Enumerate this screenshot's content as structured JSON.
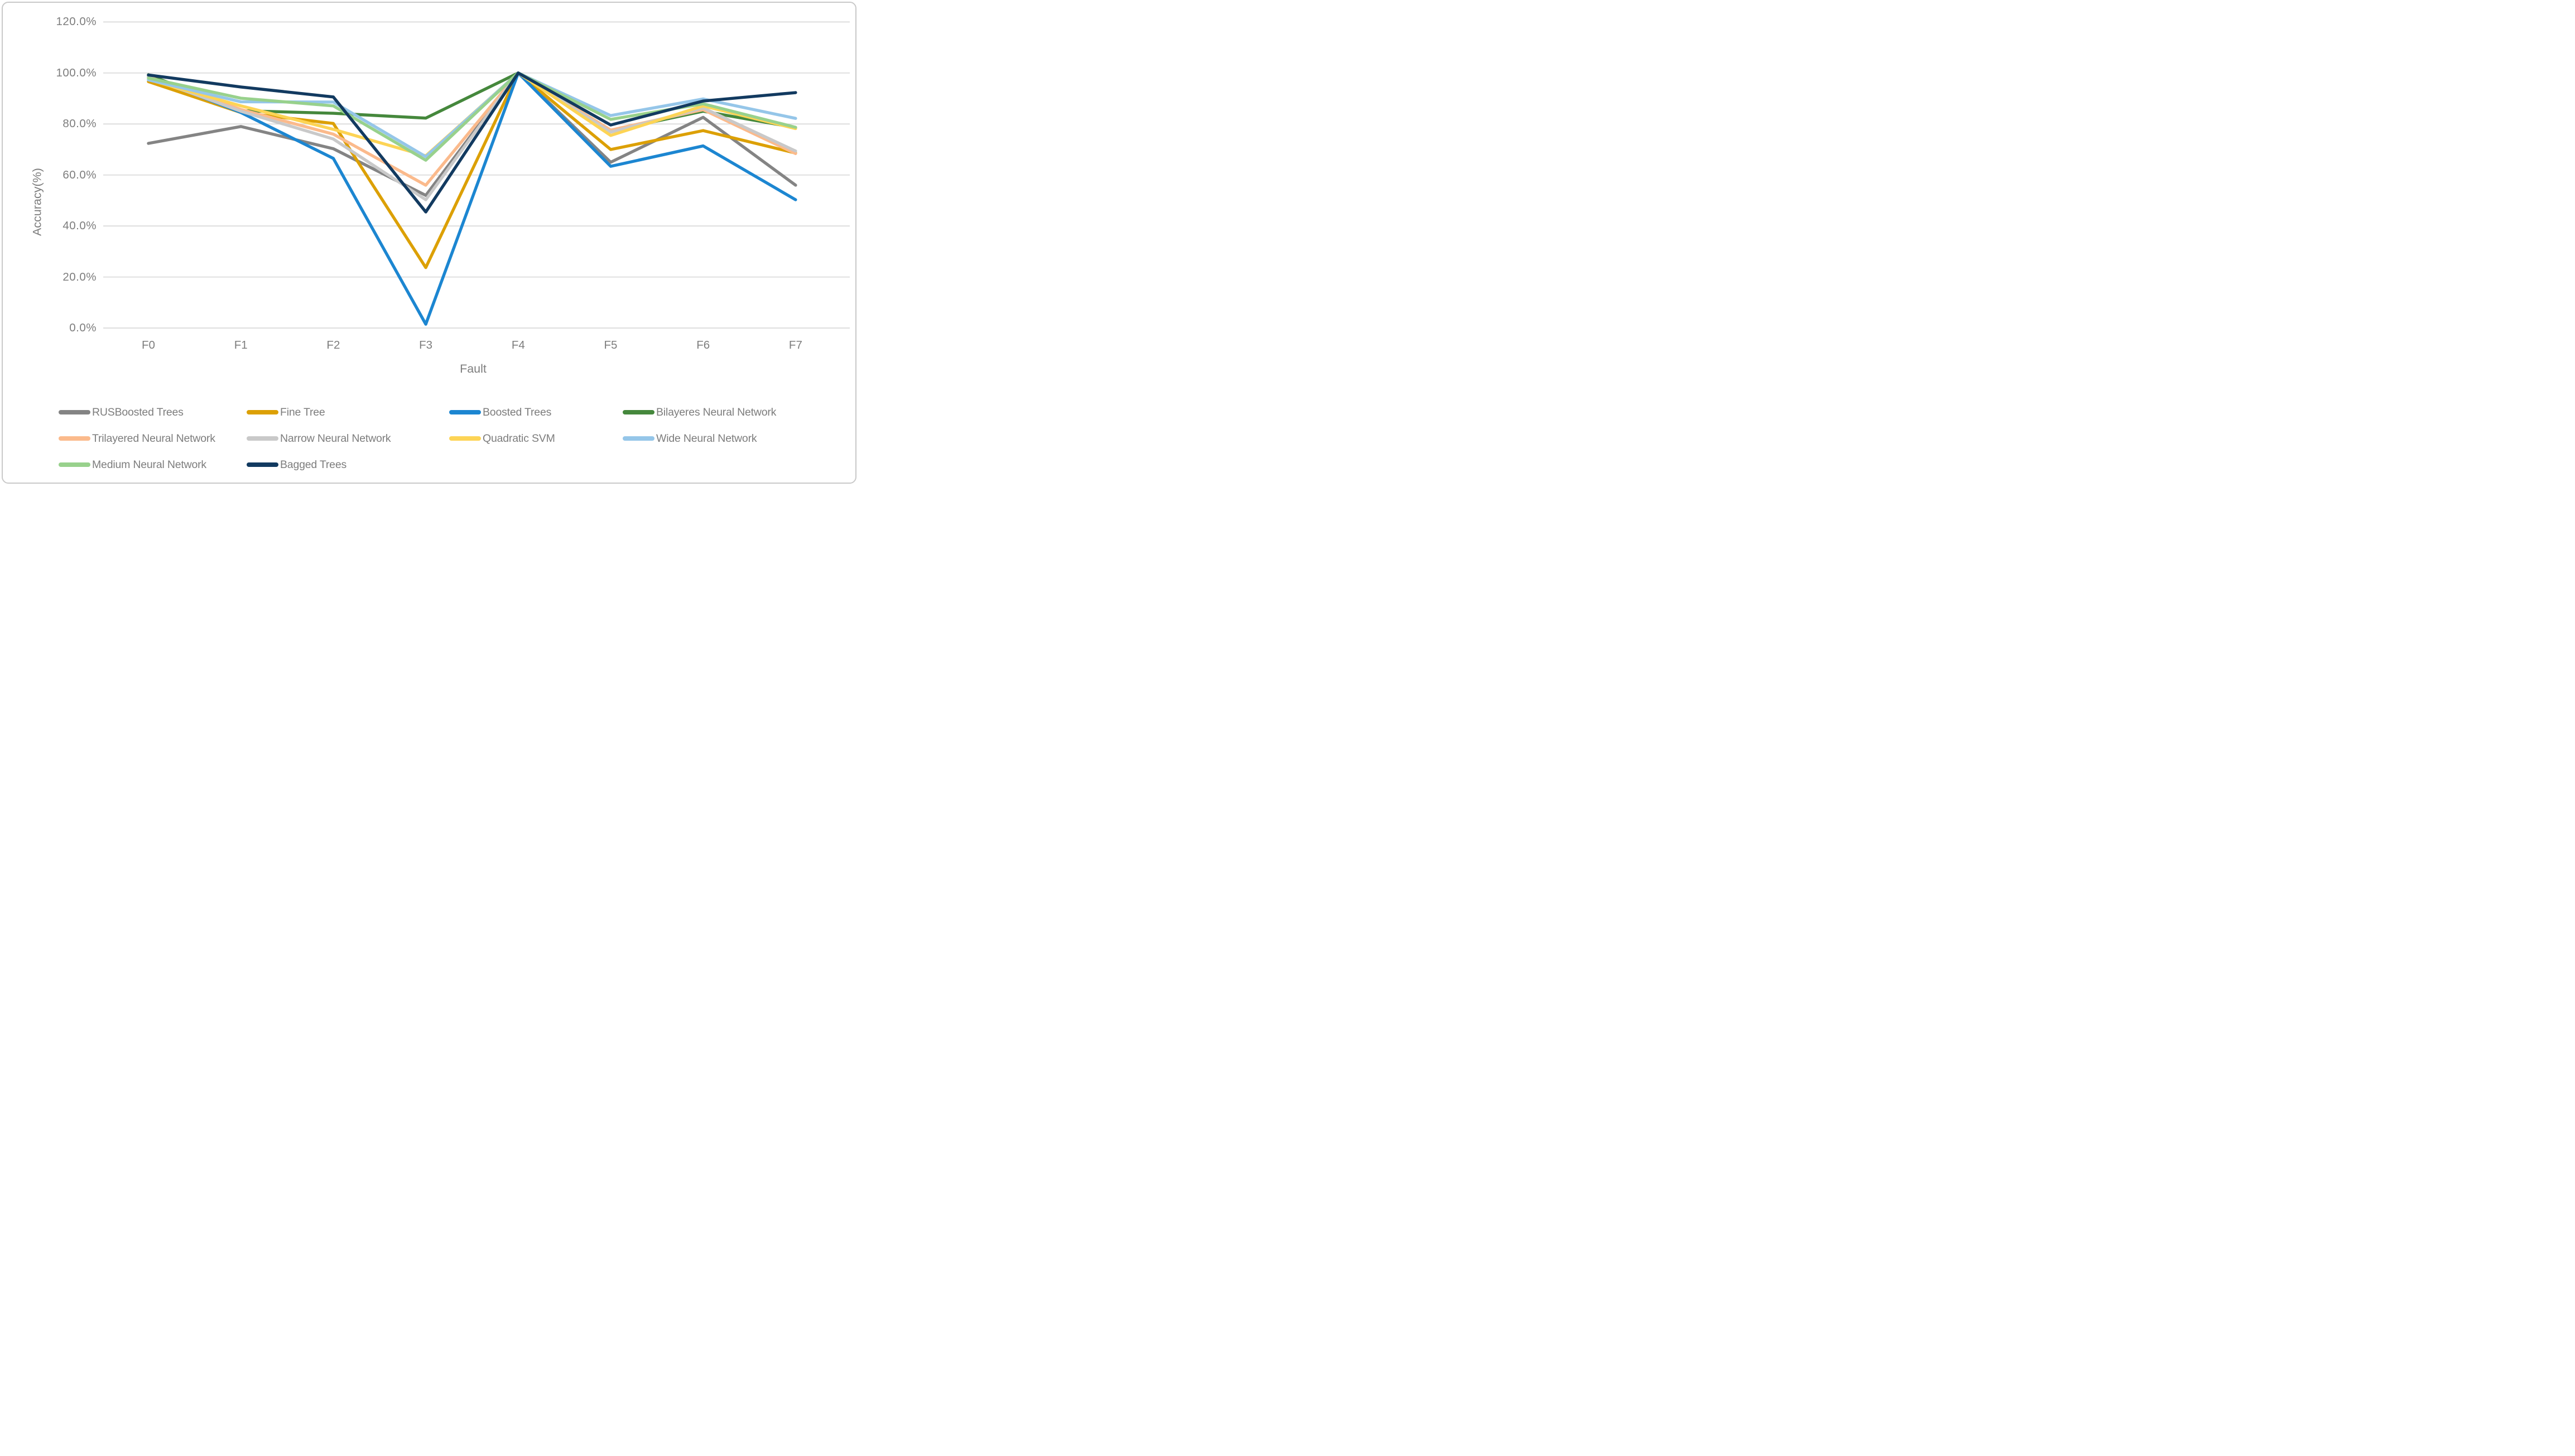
{
  "figure": {
    "y_axis_title": "Accuracy(%)",
    "x_axis_title": "Fault",
    "background_color": "#FFFFFF",
    "border_color": "#C9C9C9",
    "gridline_color": "#D9D9D9",
    "axis_text_color": "#7D7D7D",
    "legend_text_color": "#7D7D7D"
  },
  "chart_data": {
    "type": "line",
    "title": "",
    "xlabel": "Fault",
    "ylabel": "Accuracy(%)",
    "categories": [
      "F0",
      "F1",
      "F2",
      "F3",
      "F4",
      "F5",
      "F6",
      "F7"
    ],
    "ylim": [
      0,
      120
    ],
    "grid": "horizontal",
    "legend_position": "bottom",
    "y_ticks": [
      {
        "value": 120,
        "label": "120.0%"
      },
      {
        "value": 100,
        "label": "100.0%"
      },
      {
        "value": 80,
        "label": "80.0%"
      },
      {
        "value": 60,
        "label": "60.0%"
      },
      {
        "value": 40,
        "label": "40.0%"
      },
      {
        "value": 20,
        "label": "20.0%"
      },
      {
        "value": 0,
        "label": "0.0%"
      }
    ],
    "series": [
      {
        "name": "RUSBoosted Trees",
        "color": "#848484",
        "values": [
          72.4,
          79.0,
          70.3,
          52.0,
          100,
          65.0,
          82.6,
          56.0
        ]
      },
      {
        "name": "Fine Tree",
        "color": "#DCA005",
        "values": [
          96.6,
          84.5,
          80.2,
          23.7,
          100,
          70.0,
          77.4,
          68.6
        ]
      },
      {
        "name": "Boosted Trees",
        "color": "#1C86D1",
        "values": [
          98.8,
          84.5,
          66.5,
          1.5,
          100,
          63.4,
          71.4,
          50.3
        ]
      },
      {
        "name": "Bilayeres Neural Network",
        "color": "#45883C",
        "values": [
          99.3,
          85.2,
          84.2,
          82.3,
          100,
          77.3,
          85.0,
          78.6
        ]
      },
      {
        "name": "Trilayered Neural Network",
        "color": "#FBBA8C",
        "values": [
          98.5,
          85.7,
          76.0,
          56.0,
          100,
          77.6,
          85.6,
          68.4
        ]
      },
      {
        "name": "Narrow Neural Network",
        "color": "#C9C9C9",
        "values": [
          98.3,
          85.0,
          74.1,
          50.3,
          100,
          76.8,
          86.3,
          69.4
        ]
      },
      {
        "name": "Quadratic SVM",
        "color": "#FDD455",
        "values": [
          97.4,
          87.1,
          77.9,
          67.5,
          100,
          75.5,
          87.1,
          78.2
        ]
      },
      {
        "name": "Wide Neural Network",
        "color": "#95C6E9",
        "values": [
          97.3,
          88.7,
          88.6,
          67.2,
          100,
          83.3,
          89.8,
          82.2
        ]
      },
      {
        "name": "Medium Neural Network",
        "color": "#98D18C",
        "values": [
          98.0,
          90.1,
          87.1,
          65.8,
          100,
          81.8,
          87.9,
          78.7
        ]
      },
      {
        "name": "Bagged Trees",
        "color": "#123A60",
        "values": [
          99.2,
          94.5,
          90.6,
          45.5,
          100,
          79.6,
          89.0,
          92.3
        ]
      }
    ]
  }
}
